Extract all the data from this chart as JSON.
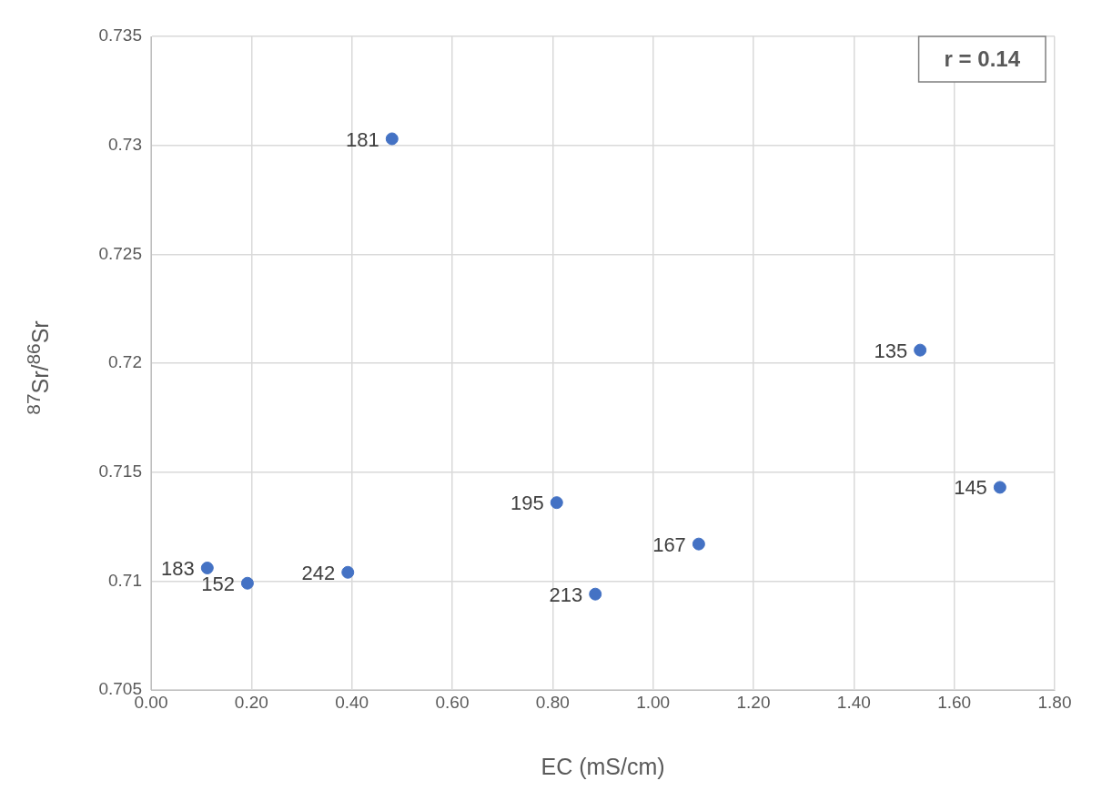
{
  "chart_data": {
    "type": "scatter",
    "xlabel": "EC (mS/cm)",
    "ylabel": "$^{87}$Sr/$^{86}$Sr",
    "annotations": [
      "r = 0.14",
      {
        "text": "181",
        "x": 0.48,
        "y": 0.7303
      },
      {
        "text": "135",
        "x": 1.532,
        "y": 0.7206
      },
      {
        "text": "145",
        "x": 1.691,
        "y": 0.7143
      },
      {
        "text": "195",
        "x": 0.808,
        "y": 0.7136
      },
      {
        "text": "167",
        "x": 1.091,
        "y": 0.7117
      },
      {
        "text": "213",
        "x": 0.885,
        "y": 0.7094
      },
      {
        "text": "242",
        "x": 0.392,
        "y": 0.7104
      },
      {
        "text": "183",
        "x": 0.112,
        "y": 0.7106
      },
      {
        "text": "152",
        "x": 0.192,
        "y": 0.7099
      }
    ],
    "series": [
      {
        "color": "#4472c4",
        "x": [
          0.48,
          1.532,
          1.691,
          0.808,
          1.091,
          0.885,
          0.392,
          0.112,
          0.192
        ],
        "values": [
          0.7303,
          0.7206,
          0.7143,
          0.7136,
          0.7117,
          0.7094,
          0.7104,
          0.7106,
          0.7099
        ]
      }
    ],
    "xlim": [
      0,
      1.8
    ],
    "xticks": [
      {
        "value": 0,
        "label": "0.00"
      },
      {
        "value": 0.2,
        "label": "0.20"
      },
      {
        "value": 0.4,
        "label": "0.40"
      },
      {
        "value": 0.6,
        "label": "0.60"
      },
      {
        "value": 0.8,
        "label": "0.80"
      },
      {
        "value": 1,
        "label": "1.00"
      },
      {
        "value": 1.2,
        "label": "1.20"
      },
      {
        "value": 1.4,
        "label": "1.40"
      },
      {
        "value": 1.6,
        "label": "1.60"
      },
      {
        "value": 1.8,
        "label": "1.80"
      }
    ],
    "ylim": [
      0.705,
      0.735
    ],
    "yticks": [
      0.705,
      0.71,
      0.715,
      0.72,
      0.725,
      0.73,
      0.735
    ],
    "grid": true,
    "marker": "circle",
    "legend": false
  }
}
